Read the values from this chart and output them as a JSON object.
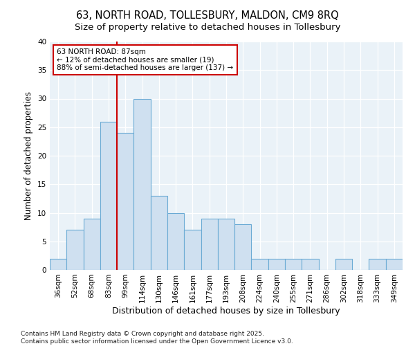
{
  "title": "63, NORTH ROAD, TOLLESBURY, MALDON, CM9 8RQ",
  "subtitle": "Size of property relative to detached houses in Tollesbury",
  "xlabel": "Distribution of detached houses by size in Tollesbury",
  "ylabel": "Number of detached properties",
  "bar_labels": [
    "36sqm",
    "52sqm",
    "68sqm",
    "83sqm",
    "99sqm",
    "114sqm",
    "130sqm",
    "146sqm",
    "161sqm",
    "177sqm",
    "193sqm",
    "208sqm",
    "224sqm",
    "240sqm",
    "255sqm",
    "271sqm",
    "286sqm",
    "302sqm",
    "318sqm",
    "333sqm",
    "349sqm"
  ],
  "bar_values": [
    2,
    7,
    9,
    26,
    24,
    30,
    13,
    10,
    7,
    9,
    9,
    8,
    2,
    2,
    2,
    2,
    0,
    2,
    0,
    2,
    2
  ],
  "bar_color": "#cfe0f0",
  "bar_edgecolor": "#6aaad4",
  "vline_x": 3.5,
  "vline_color": "#cc0000",
  "annotation_text": "63 NORTH ROAD: 87sqm\n← 12% of detached houses are smaller (19)\n88% of semi-detached houses are larger (137) →",
  "annotation_box_facecolor": "#ffffff",
  "annotation_box_edgecolor": "#cc0000",
  "ylim": [
    0,
    40
  ],
  "yticks": [
    0,
    5,
    10,
    15,
    20,
    25,
    30,
    35,
    40
  ],
  "fig_facecolor": "#ffffff",
  "plot_facecolor": "#eaf2f8",
  "grid_color": "#ffffff",
  "footnote": "Contains HM Land Registry data © Crown copyright and database right 2025.\nContains public sector information licensed under the Open Government Licence v3.0.",
  "title_fontsize": 10.5,
  "subtitle_fontsize": 9.5,
  "xlabel_fontsize": 9,
  "ylabel_fontsize": 8.5,
  "tick_fontsize": 7.5,
  "annotation_fontsize": 7.5,
  "footnote_fontsize": 6.5
}
